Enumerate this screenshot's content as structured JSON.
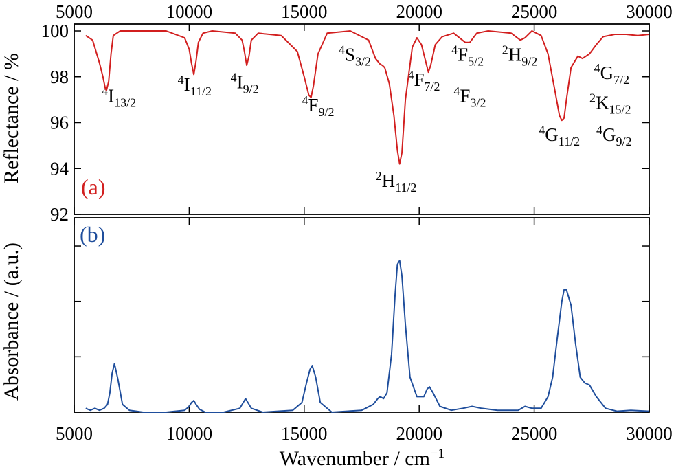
{
  "chart_data": [
    {
      "type": "line",
      "panel_label": "(a)",
      "ylabel": "Reflectance / %",
      "xlim": [
        5000,
        30000
      ],
      "ylim": [
        92,
        100.3
      ],
      "x_ticks": [
        5000,
        10000,
        15000,
        20000,
        25000,
        30000
      ],
      "y_ticks": [
        92,
        94,
        96,
        98,
        100
      ],
      "color": "#d21f1f",
      "series": [
        {
          "x": [
            5500,
            5800,
            6100,
            6250,
            6350,
            6400,
            6500,
            6600,
            6700,
            7000,
            8000,
            9000,
            9800,
            10000,
            10100,
            10200,
            10300,
            10400,
            10600,
            11000,
            12000,
            12300,
            12400,
            12500,
            12600,
            12700,
            13000,
            14000,
            14700,
            15000,
            15200,
            15300,
            15400,
            15600,
            16000,
            17000,
            17800,
            18100,
            18300,
            18400,
            18500,
            18700,
            18900,
            19050,
            19150,
            19250,
            19400,
            19700,
            19900,
            20100,
            20300,
            20400,
            20500,
            20700,
            21000,
            21500,
            22000,
            22200,
            22500,
            23000,
            24000,
            24400,
            24600,
            24900,
            25300,
            25600,
            25900,
            26100,
            26200,
            26300,
            26400,
            26600,
            26900,
            27100,
            27400,
            27700,
            28000,
            28500,
            29000,
            29500,
            30000
          ],
          "values": [
            99.8,
            99.6,
            98.6,
            98.0,
            97.5,
            97.4,
            97.8,
            99.0,
            99.8,
            100.0,
            100.0,
            100.0,
            99.7,
            99.2,
            98.6,
            98.1,
            98.7,
            99.5,
            99.9,
            100.0,
            99.9,
            99.6,
            99.1,
            98.5,
            98.9,
            99.6,
            99.9,
            99.8,
            99.1,
            98.0,
            97.2,
            97.1,
            97.6,
            99.0,
            99.9,
            100.0,
            99.6,
            98.8,
            98.55,
            98.5,
            98.4,
            97.7,
            96.3,
            94.8,
            94.2,
            94.7,
            97.0,
            99.3,
            99.7,
            99.4,
            98.6,
            98.2,
            98.5,
            99.4,
            99.75,
            99.9,
            99.5,
            99.5,
            99.9,
            100.0,
            99.9,
            99.6,
            99.7,
            100.0,
            99.8,
            99.0,
            97.4,
            96.3,
            96.1,
            96.2,
            97.0,
            98.4,
            98.9,
            98.8,
            99.0,
            99.4,
            99.75,
            99.85,
            99.85,
            99.8,
            99.85
          ]
        }
      ],
      "annotations": [
        {
          "sup": "4",
          "main": "I",
          "sub": "13/2",
          "x": 6200,
          "y": 96.9
        },
        {
          "sup": "4",
          "main": "I",
          "sub": "11/2",
          "x": 9500,
          "y": 97.4
        },
        {
          "sup": "4",
          "main": "I",
          "sub": "9/2",
          "x": 11800,
          "y": 97.5
        },
        {
          "sup": "4",
          "main": "F",
          "sub": "9/2",
          "x": 14900,
          "y": 96.5
        },
        {
          "sup": "4",
          "main": "S",
          "sub": "3/2",
          "x": 16500,
          "y": 98.7
        },
        {
          "sup": "2",
          "main": "H",
          "sub": "11/2",
          "x": 18100,
          "y": 93.2
        },
        {
          "sup": "4",
          "main": "F",
          "sub": "7/2",
          "x": 19500,
          "y": 97.6
        },
        {
          "sup": "4",
          "main": "F",
          "sub": "3/2",
          "x": 21500,
          "y": 96.9
        },
        {
          "sup": "4",
          "main": "F",
          "sub": "5/2",
          "x": 21400,
          "y": 98.7
        },
        {
          "sup": "2",
          "main": "H",
          "sub": "9/2",
          "x": 23600,
          "y": 98.7
        },
        {
          "sup": "4",
          "main": "G",
          "sub": "11/2",
          "x": 25200,
          "y": 95.2
        },
        {
          "sup": "4",
          "main": "G",
          "sub": "7/2",
          "x": 27600,
          "y": 97.9
        },
        {
          "sup": "2",
          "main": "K",
          "sub": "15/2",
          "x": 27400,
          "y": 96.6
        },
        {
          "sup": "4",
          "main": "G",
          "sub": "9/2",
          "x": 27700,
          "y": 95.2
        }
      ]
    },
    {
      "type": "line",
      "panel_label": "(b)",
      "ylabel": "Absorbance / (a.u.)",
      "xlabel": "Wavenumber / cm",
      "xlabel_sup": "−1",
      "xlim": [
        5000,
        30000
      ],
      "ylim": [
        0,
        1
      ],
      "x_ticks": [
        5000,
        10000,
        15000,
        20000,
        25000,
        30000
      ],
      "y_ticks": [
        0,
        0.285,
        0.57,
        0.855
      ],
      "color": "#1f4e9c",
      "series": [
        {
          "x": [
            5500,
            5700,
            5900,
            6100,
            6300,
            6450,
            6550,
            6650,
            6750,
            6900,
            7100,
            7400,
            8000,
            9000,
            9800,
            10000,
            10100,
            10200,
            10300,
            10450,
            10700,
            11500,
            12200,
            12350,
            12450,
            12550,
            12700,
            13200,
            14500,
            14900,
            15100,
            15250,
            15350,
            15500,
            15700,
            16200,
            17500,
            18000,
            18200,
            18300,
            18450,
            18600,
            18800,
            18950,
            19050,
            19150,
            19250,
            19400,
            19600,
            19900,
            20200,
            20350,
            20450,
            20600,
            20900,
            21400,
            21900,
            22300,
            22700,
            23400,
            24300,
            24600,
            24900,
            25300,
            25600,
            25800,
            26000,
            26200,
            26300,
            26400,
            26600,
            26800,
            27000,
            27200,
            27400,
            27700,
            28100,
            28600,
            29200,
            30000
          ],
          "values": [
            0.02,
            0.01,
            0.02,
            0.01,
            0.02,
            0.04,
            0.1,
            0.2,
            0.25,
            0.17,
            0.04,
            0.01,
            0.0,
            0.0,
            0.01,
            0.03,
            0.05,
            0.06,
            0.04,
            0.015,
            0.0,
            0.0,
            0.02,
            0.05,
            0.07,
            0.05,
            0.02,
            0.0,
            0.01,
            0.05,
            0.15,
            0.22,
            0.24,
            0.18,
            0.05,
            0.0,
            0.01,
            0.04,
            0.07,
            0.08,
            0.07,
            0.1,
            0.3,
            0.6,
            0.76,
            0.78,
            0.7,
            0.45,
            0.18,
            0.08,
            0.08,
            0.12,
            0.13,
            0.1,
            0.03,
            0.01,
            0.02,
            0.03,
            0.02,
            0.01,
            0.01,
            0.03,
            0.02,
            0.02,
            0.08,
            0.18,
            0.38,
            0.57,
            0.63,
            0.63,
            0.55,
            0.35,
            0.18,
            0.15,
            0.14,
            0.08,
            0.02,
            0.005,
            0.01,
            0.005
          ]
        }
      ]
    }
  ]
}
